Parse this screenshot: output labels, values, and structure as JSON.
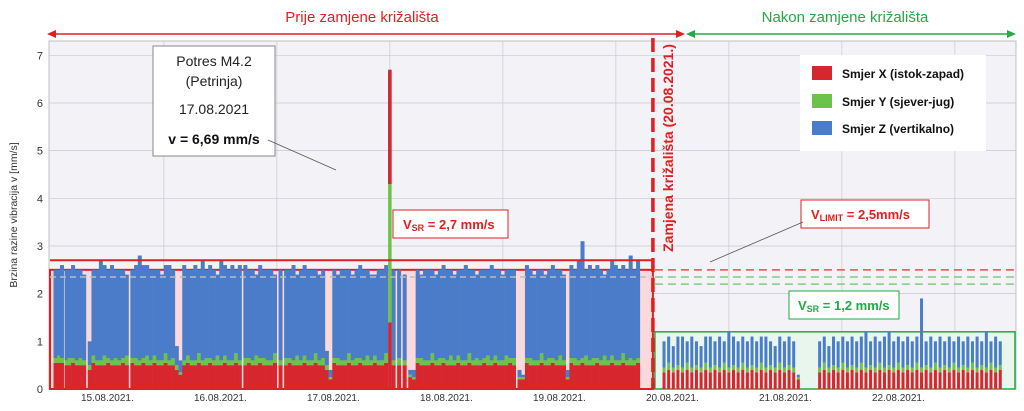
{
  "chart_data": {
    "type": "bar",
    "stacked": true,
    "ylabel": "Brzina razine vibracija v [mm/s]",
    "ylim": [
      0,
      7.3
    ],
    "yticks": [
      0,
      1,
      2,
      3,
      4,
      5,
      6,
      7
    ],
    "xticks": [
      "15.08.2021.",
      "16.08.2021.",
      "17.08.2021.",
      "18.08.2021.",
      "19.08.2021.",
      "20.08.2021.",
      "21.08.2021.",
      "22.08.2021."
    ],
    "grid": true,
    "legend_position": "top-right",
    "series": [
      {
        "name": "Smjer X (istok-zapad)",
        "color": "#d7262e"
      },
      {
        "name": "Smjer Y (sjever-jug)",
        "color": "#6cc24a"
      },
      {
        "name": "Smjer Z (vertikalno)",
        "color": "#4a7cc9"
      }
    ],
    "periods": {
      "before_label": "Prije zamjene križališta",
      "after_label": "Nakon zamjene križališta",
      "switch_label": "Zamjena križališta (20.08.2021.)",
      "switch_date": "20.08.2021."
    },
    "vsr_before": {
      "label": "V",
      "sub": "SR",
      "value_text": " = 2,7 mm/s",
      "value": 2.7
    },
    "vsr_after": {
      "label": "V",
      "sub": "SR",
      "value_text": " = 1,2 mm/s",
      "value": 1.2
    },
    "vlimit": {
      "label": "V",
      "sub": "LIMIT",
      "value_text": " = 2,5mm/s",
      "value": 2.5
    },
    "event": {
      "title": "Potres M4.2",
      "place": "(Petrinja)",
      "date": "17.08.2021",
      "value_text": "v = 6,69 mm/s",
      "value": 6.69
    },
    "before_bars": {
      "x": [
        0.35,
        0.55,
        0.7,
        0.95,
        1.1,
        1.3,
        1.5,
        1.7,
        1.9,
        2.2,
        2.4,
        2.6,
        2.8,
        3.0,
        3.2,
        3.4,
        3.6,
        3.8,
        4.0,
        4.2,
        4.5,
        4.7,
        4.9,
        5.1,
        5.3,
        5.5,
        5.7,
        5.9,
        6.1,
        6.3,
        6.5,
        6.7,
        6.9,
        7.1,
        7.3,
        7.5,
        7.7,
        7.9,
        8.1,
        8.3,
        8.5,
        8.7,
        8.9,
        9.1,
        9.3,
        9.5,
        9.7,
        9.9,
        10.1,
        10.3,
        10.6,
        10.8,
        11.0,
        11.2,
        11.4,
        11.6,
        11.8,
        12.0,
        12.2,
        12.5,
        12.8,
        13.0,
        13.2,
        13.4,
        13.6,
        13.8,
        14.0,
        14.2,
        14.4,
        14.6,
        14.8,
        15.0,
        15.2,
        15.4,
        15.6,
        15.8,
        16.0,
        16.2,
        16.4,
        16.6,
        16.8,
        17.0,
        17.2,
        17.4,
        17.6,
        17.8,
        18.0,
        18.2,
        18.6,
        18.9,
        19.2,
        19.5,
        19.7,
        19.9,
        20.1,
        20.3,
        20.5,
        20.7,
        20.9,
        21.1,
        21.3,
        21.5,
        21.7,
        21.9,
        22.1,
        22.3,
        22.5,
        22.7,
        22.9,
        23.1,
        23.3,
        23.5,
        23.7,
        23.9,
        24.1,
        24.3,
        24.5,
        24.7,
        24.9,
        25.1,
        25.4,
        25.6,
        25.8,
        26.0,
        26.2,
        26.4,
        26.6,
        26.8,
        27.0,
        27.2,
        27.4,
        27.6,
        27.8,
        28.0,
        28.2,
        28.4,
        28.6,
        28.8,
        29.0,
        29.2,
        29.4,
        29.6,
        29.8,
        30.0,
        30.2,
        30.4,
        30.6,
        30.8,
        31.0,
        31.2,
        31.4,
        31.6,
        31.8
      ],
      "total": [
        2.5,
        2.5,
        2.6,
        2.5,
        2.5,
        2.6,
        2.5,
        2.5,
        2.4,
        1.0,
        2.5,
        2.5,
        2.7,
        2.6,
        2.5,
        2.6,
        2.5,
        2.5,
        2.5,
        2.4,
        2.5,
        2.6,
        2.8,
        2.6,
        2.6,
        2.5,
        2.5,
        2.5,
        2.4,
        2.6,
        2.6,
        2.5,
        0.9,
        0.6,
        2.6,
        2.5,
        2.5,
        2.6,
        2.5,
        2.7,
        2.5,
        2.6,
        2.5,
        2.4,
        2.7,
        2.6,
        2.5,
        2.6,
        2.5,
        2.6,
        2.6,
        2.5,
        2.5,
        2.4,
        2.6,
        2.5,
        2.5,
        2.5,
        2.4,
        2.5,
        2.5,
        2.5,
        2.6,
        2.4,
        2.5,
        2.6,
        2.5,
        2.5,
        2.5,
        2.4,
        2.5,
        0.8,
        0.4,
        2.5,
        2.4,
        2.5,
        2.5,
        2.5,
        2.4,
        2.5,
        2.6,
        2.5,
        2.5,
        2.4,
        2.4,
        2.5,
        2.5,
        2.6,
        2.5,
        2.5,
        2.4,
        0.4,
        0.4,
        2.5,
        2.4,
        2.5,
        2.5,
        2.5,
        2.4,
        2.5,
        2.6,
        2.5,
        2.5,
        2.4,
        2.5,
        2.5,
        2.6,
        2.5,
        2.5,
        2.4,
        2.5,
        2.5,
        2.5,
        2.6,
        2.5,
        2.5,
        2.4,
        2.5,
        2.5,
        2.5,
        0.4,
        0.3,
        2.6,
        2.5,
        2.4,
        2.5,
        2.5,
        2.4,
        2.5,
        2.6,
        2.5,
        2.5,
        2.4,
        0.4,
        2.6,
        2.5,
        2.7,
        3.1,
        2.5,
        2.6,
        2.5,
        2.6,
        2.5,
        2.4,
        2.5,
        2.7,
        2.6,
        2.5,
        2.6,
        2.5,
        2.8,
        2.5,
        2.7,
        2.6
      ],
      "x_val": [
        0.55,
        0.55,
        0.55,
        0.5,
        0.5,
        0.55,
        0.5,
        0.5,
        0.5,
        0.4,
        0.55,
        0.5,
        0.5,
        0.5,
        0.55,
        0.5,
        0.5,
        0.5,
        0.55,
        0.5,
        0.55,
        0.5,
        0.5,
        0.55,
        0.5,
        0.5,
        0.55,
        0.5,
        0.5,
        0.55,
        0.5,
        0.5,
        0.4,
        0.3,
        0.5,
        0.55,
        0.5,
        0.5,
        0.55,
        0.5,
        0.5,
        0.55,
        0.5,
        0.5,
        0.5,
        0.55,
        0.5,
        0.5,
        0.55,
        0.5,
        0.5,
        0.55,
        0.5,
        0.5,
        0.55,
        0.5,
        0.5,
        0.5,
        0.55,
        0.5,
        0.5,
        0.55,
        0.5,
        0.5,
        0.5,
        0.55,
        0.5,
        0.5,
        0.55,
        0.5,
        0.5,
        0.4,
        0.2,
        0.55,
        0.5,
        0.5,
        0.5,
        0.55,
        0.5,
        0.5,
        0.55,
        0.5,
        0.5,
        0.5,
        0.55,
        0.5,
        0.5,
        0.55,
        0.5,
        0.5,
        0.5,
        0.25,
        0.2,
        0.55,
        0.5,
        0.5,
        0.5,
        0.55,
        0.5,
        0.5,
        0.55,
        0.5,
        0.5,
        0.5,
        0.55,
        0.5,
        0.5,
        0.55,
        0.5,
        0.5,
        0.5,
        0.55,
        0.5,
        0.5,
        0.55,
        0.5,
        0.5,
        0.5,
        0.55,
        0.5,
        0.2,
        0.2,
        0.55,
        0.5,
        0.5,
        0.5,
        0.55,
        0.5,
        0.5,
        0.55,
        0.5,
        0.5,
        0.5,
        0.2,
        0.55,
        0.5,
        0.5,
        0.55,
        0.5,
        0.5,
        0.5,
        0.55,
        0.5,
        0.5,
        0.5,
        0.55,
        0.5,
        0.5,
        0.55,
        0.5,
        0.5,
        0.5,
        0.55,
        0.5
      ],
      "y_val": [
        0.1,
        0.15,
        0.1,
        0.1,
        0.15,
        0.1,
        0.1,
        0.15,
        0.1,
        0.1,
        0.15,
        0.1,
        0.1,
        0.2,
        0.1,
        0.1,
        0.15,
        0.1,
        0.1,
        0.2,
        0.1,
        0.15,
        0.1,
        0.1,
        0.2,
        0.1,
        0.15,
        0.1,
        0.1,
        0.2,
        0.1,
        0.15,
        0.1,
        0.05,
        0.1,
        0.15,
        0.1,
        0.1,
        0.2,
        0.1,
        0.15,
        0.1,
        0.1,
        0.2,
        0.1,
        0.15,
        0.1,
        0.1,
        0.2,
        0.1,
        0.15,
        0.1,
        0.1,
        0.2,
        0.1,
        0.15,
        0.1,
        0.1,
        0.2,
        0.1,
        0.15,
        0.1,
        0.1,
        0.2,
        0.1,
        0.15,
        0.1,
        0.1,
        0.2,
        0.1,
        0.15,
        0.1,
        0.05,
        0.1,
        0.15,
        0.1,
        0.1,
        0.2,
        0.1,
        0.15,
        0.1,
        0.1,
        0.2,
        0.1,
        0.15,
        0.1,
        0.1,
        0.2,
        0.1,
        0.15,
        0.1,
        0.05,
        0.05,
        0.1,
        0.15,
        0.1,
        0.1,
        0.2,
        0.1,
        0.15,
        0.1,
        0.1,
        0.2,
        0.1,
        0.15,
        0.1,
        0.1,
        0.2,
        0.1,
        0.15,
        0.1,
        0.1,
        0.2,
        0.1,
        0.15,
        0.1,
        0.1,
        0.2,
        0.1,
        0.15,
        0.05,
        0.05,
        0.1,
        0.15,
        0.1,
        0.1,
        0.2,
        0.1,
        0.15,
        0.1,
        0.1,
        0.2,
        0.1,
        0.05,
        0.1,
        0.15,
        0.1,
        0.1,
        0.2,
        0.1,
        0.15,
        0.1,
        0.1,
        0.2,
        0.1,
        0.15,
        0.1,
        0.1,
        0.2,
        0.1,
        0.15,
        0.1,
        0.1,
        0.2
      ]
    },
    "event_bar": {
      "x": 18.4,
      "x_val": 1.4,
      "y_val": 2.9,
      "z_val": 2.4
    },
    "after_bars": {
      "x": [
        33.2,
        33.45,
        33.7,
        33.95,
        34.2,
        34.45,
        34.7,
        34.95,
        35.2,
        35.45,
        35.7,
        35.95,
        36.2,
        36.45,
        36.7,
        36.95,
        37.2,
        37.45,
        37.7,
        37.95,
        38.2,
        38.45,
        38.7,
        38.95,
        39.2,
        39.45,
        39.7,
        39.95,
        40.2,
        40.45,
        41.6,
        41.85,
        42.1,
        42.35,
        42.6,
        42.85,
        43.1,
        43.35,
        43.6,
        43.85,
        44.1,
        44.35,
        44.6,
        44.85,
        45.1,
        45.35,
        45.6,
        45.85,
        46.1,
        46.35,
        46.6,
        46.85,
        47.1,
        47.35,
        47.6,
        47.85,
        48.1,
        48.35,
        48.6,
        48.85,
        49.1,
        49.35,
        49.6,
        49.85,
        50.1,
        50.35,
        50.6,
        50.85,
        51.1,
        51.35
      ],
      "total": [
        1.0,
        1.1,
        0.9,
        1.1,
        1.1,
        1.0,
        1.1,
        1.0,
        0.9,
        1.1,
        1.1,
        1.0,
        1.1,
        1.0,
        1.2,
        1.1,
        1.0,
        1.1,
        1.0,
        1.1,
        1.0,
        1.1,
        1.1,
        1.0,
        0.9,
        1.1,
        1.0,
        1.1,
        1.0,
        0.3,
        1.0,
        1.1,
        0.9,
        1.1,
        1.0,
        1.1,
        1.0,
        1.1,
        1.0,
        1.1,
        1.2,
        1.0,
        1.1,
        1.0,
        1.1,
        1.2,
        1.0,
        1.1,
        1.0,
        1.1,
        1.0,
        1.1,
        1.9,
        1.0,
        1.1,
        1.0,
        1.1,
        1.0,
        1.1,
        1.0,
        1.1,
        1.0,
        1.1,
        1.0,
        1.1,
        1.0,
        1.2,
        1.0,
        1.1,
        1.0
      ],
      "x_val": [
        0.35,
        0.4,
        0.35,
        0.4,
        0.35,
        0.4,
        0.35,
        0.4,
        0.35,
        0.4,
        0.35,
        0.4,
        0.35,
        0.4,
        0.35,
        0.4,
        0.35,
        0.4,
        0.35,
        0.4,
        0.35,
        0.4,
        0.35,
        0.4,
        0.35,
        0.4,
        0.35,
        0.4,
        0.35,
        0.2,
        0.35,
        0.4,
        0.35,
        0.4,
        0.35,
        0.4,
        0.35,
        0.4,
        0.35,
        0.4,
        0.35,
        0.4,
        0.35,
        0.4,
        0.35,
        0.4,
        0.35,
        0.4,
        0.35,
        0.4,
        0.35,
        0.4,
        0.35,
        0.4,
        0.35,
        0.4,
        0.35,
        0.4,
        0.35,
        0.4,
        0.35,
        0.4,
        0.35,
        0.4,
        0.35,
        0.4,
        0.35,
        0.4,
        0.35,
        0.4
      ],
      "y_val": [
        0.1,
        0.15,
        0.1,
        0.1,
        0.1,
        0.15,
        0.1,
        0.1,
        0.1,
        0.15,
        0.1,
        0.1,
        0.1,
        0.15,
        0.1,
        0.1,
        0.1,
        0.15,
        0.1,
        0.1,
        0.1,
        0.15,
        0.1,
        0.1,
        0.1,
        0.15,
        0.1,
        0.1,
        0.1,
        0.05,
        0.1,
        0.15,
        0.1,
        0.1,
        0.1,
        0.15,
        0.1,
        0.1,
        0.1,
        0.15,
        0.1,
        0.1,
        0.1,
        0.15,
        0.1,
        0.1,
        0.1,
        0.15,
        0.1,
        0.1,
        0.1,
        0.15,
        0.1,
        0.1,
        0.1,
        0.15,
        0.1,
        0.1,
        0.1,
        0.15,
        0.1,
        0.1,
        0.1,
        0.15,
        0.1,
        0.1,
        0.1,
        0.15,
        0.1,
        0.1
      ]
    }
  }
}
